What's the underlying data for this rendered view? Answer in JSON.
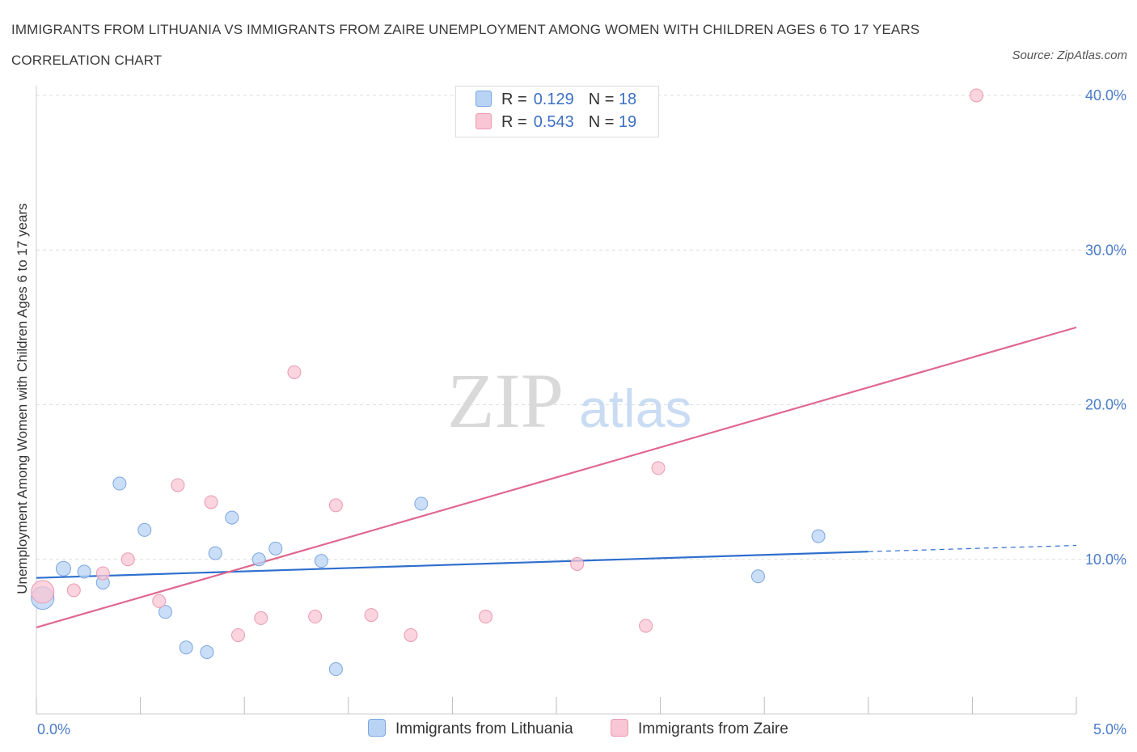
{
  "title": "IMMIGRANTS FROM LITHUANIA VS IMMIGRANTS FROM ZAIRE UNEMPLOYMENT AMONG WOMEN WITH CHILDREN AGES 6 TO 17 YEARS CORRELATION CHART",
  "source": "Source: ZipAtlas.com",
  "watermark": {
    "zip": "ZIP",
    "atlas": "atlas"
  },
  "colors": {
    "lithuania_fill": "#b9d3f5",
    "lithuania_stroke": "#7aa6e0",
    "lithuania_line": "#2f6fce",
    "zaire_fill": "#f8c6d4",
    "zaire_stroke": "#ea9ab2",
    "zaire_line": "#e0688f",
    "tick_text": "#4a7cc9",
    "grid": "#dedede"
  },
  "legend": {
    "rows": [
      {
        "r_label": "R =",
        "r_value": "0.129",
        "n_label": "N =",
        "n_value": "18",
        "series": "lithuania"
      },
      {
        "r_label": "R =",
        "r_value": "0.543",
        "n_label": "N =",
        "n_value": "19",
        "series": "zaire"
      }
    ]
  },
  "bottom_legend": {
    "lithuania": "Immigrants from Lithuania",
    "zaire": "Immigrants from Zaire"
  },
  "chart_data": {
    "type": "scatter",
    "title": "IMMIGRANTS FROM LITHUANIA VS IMMIGRANTS FROM ZAIRE UNEMPLOYMENT AMONG WOMEN WITH CHILDREN AGES 6 TO 17 YEARS CORRELATION CHART",
    "xlabel": "",
    "ylabel": "Unemployment Among Women with Children Ages 6 to 17 years",
    "xlim": [
      0,
      5
    ],
    "ylim": [
      0,
      40
    ],
    "x_tick_labels": [
      {
        "value": 0,
        "label": "0.0%"
      },
      {
        "value": 5,
        "label": "5.0%"
      }
    ],
    "y_tick_labels": [
      {
        "value": 10,
        "label": "10.0%"
      },
      {
        "value": 20,
        "label": "20.0%"
      },
      {
        "value": 30,
        "label": "30.0%"
      },
      {
        "value": 40,
        "label": "40.0%"
      }
    ],
    "grid": true,
    "series": [
      {
        "name": "Immigrants from Lithuania",
        "key": "lithuania",
        "points": [
          [
            0.03,
            7.5,
            14
          ],
          [
            0.13,
            9.4,
            9
          ],
          [
            0.23,
            9.2,
            8
          ],
          [
            0.32,
            8.5,
            8
          ],
          [
            0.4,
            14.9,
            8
          ],
          [
            0.52,
            11.9,
            8
          ],
          [
            0.62,
            6.6,
            8
          ],
          [
            0.72,
            4.3,
            8
          ],
          [
            0.82,
            4.0,
            8
          ],
          [
            0.86,
            10.4,
            8
          ],
          [
            0.94,
            12.7,
            8
          ],
          [
            1.07,
            10.0,
            8
          ],
          [
            1.15,
            10.7,
            8
          ],
          [
            1.37,
            9.9,
            8
          ],
          [
            1.44,
            2.9,
            8
          ],
          [
            1.85,
            13.6,
            8
          ],
          [
            3.47,
            8.9,
            8
          ],
          [
            3.76,
            11.5,
            8
          ]
        ],
        "trend": {
          "x0": 0.0,
          "y0": 8.8,
          "x1": 4.0,
          "y1": 10.5,
          "dash_to_x": 5.0,
          "dash_to_y": 10.9
        }
      },
      {
        "name": "Immigrants from Zaire",
        "key": "zaire",
        "points": [
          [
            0.03,
            7.9,
            14
          ],
          [
            0.18,
            8.0,
            8
          ],
          [
            0.32,
            9.1,
            8
          ],
          [
            0.44,
            10.0,
            8
          ],
          [
            0.59,
            7.3,
            8
          ],
          [
            0.68,
            14.8,
            8
          ],
          [
            0.84,
            13.7,
            8
          ],
          [
            0.97,
            5.1,
            8
          ],
          [
            1.08,
            6.2,
            8
          ],
          [
            1.24,
            22.1,
            8
          ],
          [
            1.34,
            6.3,
            8
          ],
          [
            1.44,
            13.5,
            8
          ],
          [
            1.61,
            6.4,
            8
          ],
          [
            1.8,
            5.1,
            8
          ],
          [
            2.16,
            6.3,
            8
          ],
          [
            2.6,
            9.7,
            8
          ],
          [
            2.93,
            5.7,
            8
          ],
          [
            2.99,
            15.9,
            8
          ],
          [
            4.52,
            40.0,
            8
          ]
        ],
        "trend": {
          "x0": 0.0,
          "y0": 5.6,
          "x1": 5.0,
          "y1": 25.0
        }
      }
    ]
  }
}
